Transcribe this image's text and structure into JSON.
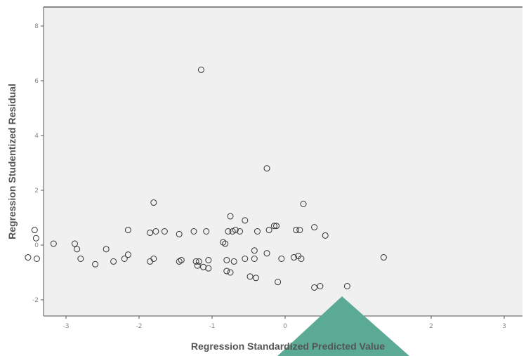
{
  "chart_data": {
    "type": "scatter",
    "title": "",
    "xlabel": "Regression Standardized Predicted Value",
    "ylabel": "Regression Studentized Residual",
    "xlim": [
      -4.0,
      4.0
    ],
    "ylim": [
      -2.5,
      8.5
    ],
    "xticks": [
      -3,
      -2,
      -1,
      0,
      1,
      2,
      3
    ],
    "yticks": [
      -2,
      0,
      2,
      4,
      6,
      8
    ],
    "grid": false,
    "legend": "none",
    "colors": {
      "plot_background": "#f0f0f0",
      "marker_stroke": "#333333",
      "axis": "#555555",
      "overlay_arrow": "#5aaa96"
    },
    "series": [
      {
        "points": [
          [
            -3.52,
            -0.45
          ],
          [
            -3.43,
            0.55
          ],
          [
            -3.41,
            0.25
          ],
          [
            -3.4,
            -0.5
          ],
          [
            -3.17,
            0.05
          ],
          [
            -2.88,
            0.05
          ],
          [
            -2.85,
            -0.15
          ],
          [
            -2.8,
            -0.5
          ],
          [
            -2.6,
            -0.7
          ],
          [
            -2.45,
            -0.15
          ],
          [
            -2.35,
            -0.6
          ],
          [
            -2.2,
            -0.5
          ],
          [
            -2.15,
            -0.35
          ],
          [
            -2.15,
            0.55
          ],
          [
            -1.8,
            1.55
          ],
          [
            -1.85,
            0.45
          ],
          [
            -1.85,
            -0.6
          ],
          [
            -1.8,
            -0.5
          ],
          [
            -1.77,
            0.5
          ],
          [
            -1.65,
            0.5
          ],
          [
            -1.45,
            0.4
          ],
          [
            -1.45,
            -0.6
          ],
          [
            -1.42,
            -0.55
          ],
          [
            -1.25,
            0.5
          ],
          [
            -1.22,
            -0.6
          ],
          [
            -1.2,
            -0.75
          ],
          [
            -1.18,
            -0.6
          ],
          [
            -1.15,
            6.4
          ],
          [
            -1.12,
            -0.8
          ],
          [
            -1.08,
            0.5
          ],
          [
            -1.05,
            -0.55
          ],
          [
            -1.05,
            -0.85
          ],
          [
            -0.85,
            0.1
          ],
          [
            -0.82,
            0.05
          ],
          [
            -0.8,
            -0.55
          ],
          [
            -0.8,
            -0.95
          ],
          [
            -0.78,
            0.5
          ],
          [
            -0.75,
            1.05
          ],
          [
            -0.75,
            -1.0
          ],
          [
            -0.72,
            0.5
          ],
          [
            -0.7,
            -0.6
          ],
          [
            -0.68,
            0.55
          ],
          [
            -0.62,
            0.5
          ],
          [
            -0.55,
            0.9
          ],
          [
            -0.55,
            -0.5
          ],
          [
            -0.48,
            -1.15
          ],
          [
            -0.42,
            -0.2
          ],
          [
            -0.42,
            -0.5
          ],
          [
            -0.4,
            -1.2
          ],
          [
            -0.38,
            0.5
          ],
          [
            -0.25,
            2.8
          ],
          [
            -0.25,
            -0.3
          ],
          [
            -0.22,
            0.55
          ],
          [
            -0.15,
            0.7
          ],
          [
            -0.12,
            0.7
          ],
          [
            -0.1,
            -1.35
          ],
          [
            -0.05,
            -0.5
          ],
          [
            0.12,
            -0.45
          ],
          [
            0.15,
            0.55
          ],
          [
            0.18,
            -0.4
          ],
          [
            0.2,
            0.55
          ],
          [
            0.22,
            -0.5
          ],
          [
            0.25,
            1.5
          ],
          [
            0.4,
            0.65
          ],
          [
            0.4,
            -1.55
          ],
          [
            0.48,
            -1.5
          ],
          [
            0.55,
            0.35
          ],
          [
            0.85,
            -1.5
          ],
          [
            1.35,
            -0.45
          ]
        ]
      }
    ]
  }
}
